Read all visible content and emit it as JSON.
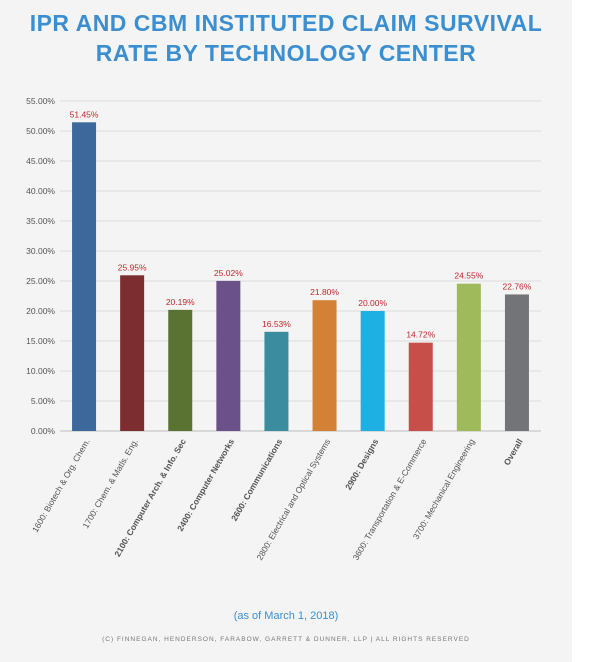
{
  "title_line1": "IPR AND CBM INSTITUTED CLAIM SURVIVAL",
  "title_line2": "RATE BY TECHNOLOGY CENTER",
  "note": "(as of March 1, 2018)",
  "copyright": "(C) FINNEGAN, HENDERSON, FARABOW, GARRETT & DUNNER, LLP | ALL RIGHTS RESERVED",
  "chart_data": {
    "type": "bar",
    "title": "IPR AND CBM INSTITUTED CLAIM SURVIVAL RATE BY TECHNOLOGY CENTER",
    "categories": [
      "1600: Biotech & Org. Chem.",
      "1700: Chem. & Matls. Eng.",
      "2100: Computer Arch. & Info. Sec",
      "2400: Computer Networks",
      "2600: Communications",
      "2800: Electrical and Optical Systems",
      "2900: Designs",
      "3600: Transportation & E-Commerce",
      "3700: Mechanical Engineering",
      "Overall"
    ],
    "bold_categories": [
      false,
      false,
      true,
      true,
      true,
      false,
      true,
      false,
      false,
      true
    ],
    "values": [
      51.45,
      25.95,
      20.19,
      25.02,
      16.53,
      21.8,
      20.0,
      14.72,
      24.55,
      22.76
    ],
    "value_labels": [
      "51.45%",
      "25.95%",
      "20.19%",
      "25.02%",
      "16.53%",
      "21.80%",
      "20.00%",
      "14.72%",
      "24.55%",
      "22.76%"
    ],
    "colors": [
      "#3d689b",
      "#7c2d30",
      "#5a7332",
      "#6b5189",
      "#3b8c9e",
      "#d28136",
      "#1fb0e3",
      "#c65049",
      "#9fba5a",
      "#737478"
    ],
    "ylim": [
      0,
      55
    ],
    "yticks": [
      0,
      5,
      10,
      15,
      20,
      25,
      30,
      35,
      40,
      45,
      50,
      55
    ],
    "ytick_labels": [
      "0.00%",
      "5.00%",
      "10.00%",
      "15.00%",
      "20.00%",
      "25.00%",
      "30.00%",
      "35.00%",
      "40.00%",
      "45.00%",
      "50.00%",
      "55.00%"
    ],
    "value_label_color": "#c0272d",
    "grid": true,
    "legend": "none"
  }
}
